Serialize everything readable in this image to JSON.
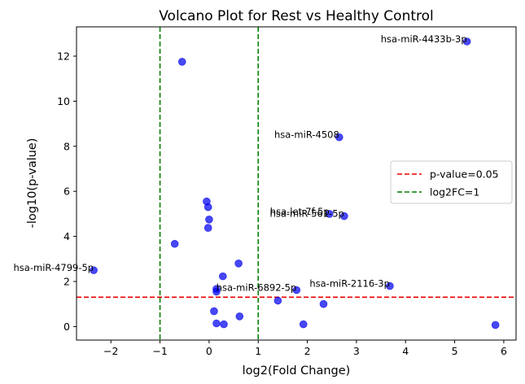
{
  "chart_data": {
    "type": "scatter",
    "title": "Volcano Plot for Rest vs Healthy Control",
    "xlabel": "log2(Fold Change)",
    "ylabel": "-log10(p-value)",
    "xlim": [
      -2.7,
      6.25
    ],
    "ylim": [
      -0.6,
      13.3
    ],
    "xticks": [
      "−2",
      "−1",
      "0",
      "1",
      "2",
      "3",
      "4",
      "5",
      "6"
    ],
    "xtick_values": [
      -2,
      -1,
      0,
      1,
      2,
      3,
      4,
      5,
      6
    ],
    "yticks": [
      "0",
      "2",
      "4",
      "6",
      "8",
      "10",
      "12"
    ],
    "ytick_values": [
      0,
      2,
      4,
      6,
      8,
      10,
      12
    ],
    "grid": false,
    "point_color": "#0000ee",
    "points": [
      {
        "x": 5.25,
        "y": 12.65
      },
      {
        "x": -0.55,
        "y": 11.75
      },
      {
        "x": 2.65,
        "y": 8.4
      },
      {
        "x": -0.05,
        "y": 5.55
      },
      {
        "x": -0.02,
        "y": 5.3
      },
      {
        "x": 2.45,
        "y": 5.0
      },
      {
        "x": 2.75,
        "y": 4.9
      },
      {
        "x": 0.0,
        "y": 4.75
      },
      {
        "x": -0.02,
        "y": 4.38
      },
      {
        "x": -0.7,
        "y": 3.67
      },
      {
        "x": 0.6,
        "y": 2.8
      },
      {
        "x": -2.35,
        "y": 2.5
      },
      {
        "x": 0.28,
        "y": 2.23
      },
      {
        "x": 3.68,
        "y": 1.8
      },
      {
        "x": 0.15,
        "y": 1.67
      },
      {
        "x": 1.78,
        "y": 1.62
      },
      {
        "x": 0.15,
        "y": 1.55
      },
      {
        "x": 1.4,
        "y": 1.15
      },
      {
        "x": 2.33,
        "y": 1.0
      },
      {
        "x": 0.1,
        "y": 0.68
      },
      {
        "x": 0.62,
        "y": 0.45
      },
      {
        "x": 0.15,
        "y": 0.14
      },
      {
        "x": 0.3,
        "y": 0.1
      },
      {
        "x": 1.92,
        "y": 0.1
      },
      {
        "x": 5.83,
        "y": 0.07
      }
    ],
    "annotations": [
      {
        "text": "hsa-miR-4433b-3p",
        "x": 5.25,
        "y": 12.65
      },
      {
        "text": "hsa-miR-4508",
        "x": 2.65,
        "y": 8.4
      },
      {
        "text": "hsa-let-7f-5p",
        "x": 2.45,
        "y": 5.0
      },
      {
        "text": "hsa-miR-561-5p",
        "x": 2.75,
        "y": 4.9
      },
      {
        "text": "hsa-miR-4799-5p",
        "x": -2.35,
        "y": 2.5
      },
      {
        "text": "hsa-miR-2116-3p",
        "x": 3.68,
        "y": 1.8
      },
      {
        "text": "hsa-miR-6892-5p",
        "x": 1.78,
        "y": 1.62
      }
    ],
    "hlines": [
      {
        "y": 1.30103,
        "color": "#ee0000",
        "label": "p-value=0.05"
      }
    ],
    "vlines": [
      {
        "x": -1,
        "color": "#008000"
      },
      {
        "x": 1,
        "color": "#008000",
        "label": "log2FC=1"
      }
    ],
    "legend": {
      "placement": "center-right",
      "entries": [
        {
          "label": "p-value=0.05",
          "color": "#ee0000"
        },
        {
          "label": "log2FC=1",
          "color": "#008000"
        }
      ]
    }
  }
}
